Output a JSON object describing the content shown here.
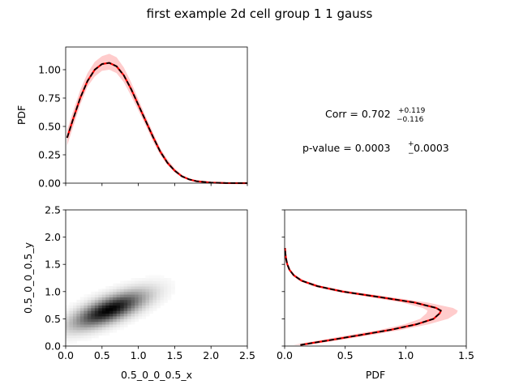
{
  "title": "first example 2d cell group 1 1 gauss",
  "stats": {
    "corr_prefix": "Corr = ",
    "corr_value": "0.702",
    "corr_plus": "+0.119",
    "corr_minus": "−0.116",
    "pvalue_prefix": "p-value = ",
    "pvalue_value": "0.0003",
    "pvalue_plus": "+",
    "pvalue_minus": "−",
    "pvalue_err": "0.0003"
  },
  "colors": {
    "band": "#ff0000",
    "band_opacity": 0.2,
    "truth_line": "#ff0000",
    "fit_line": "#000000"
  },
  "chart_data": [
    {
      "id": "marginal-x",
      "type": "line",
      "xlabel": "",
      "ylabel": "PDF",
      "xlim": [
        0,
        2.5
      ],
      "ylim": [
        0,
        1.2
      ],
      "xticks": [
        0,
        0.5,
        1.0,
        1.5,
        2.0,
        2.5
      ],
      "xtick_labels_visible": false,
      "yticks": [
        0.0,
        0.25,
        0.5,
        0.75,
        1.0
      ],
      "ytick_labels": [
        "0.00",
        "0.25",
        "0.50",
        "0.75",
        "1.00"
      ],
      "x": [
        0.02,
        0.1,
        0.2,
        0.3,
        0.4,
        0.5,
        0.6,
        0.7,
        0.8,
        0.9,
        1.0,
        1.1,
        1.2,
        1.3,
        1.4,
        1.5,
        1.6,
        1.7,
        1.8,
        2.0,
        2.2,
        2.5
      ],
      "y": [
        0.4,
        0.56,
        0.75,
        0.9,
        1.0,
        1.05,
        1.06,
        1.03,
        0.95,
        0.83,
        0.69,
        0.55,
        0.41,
        0.28,
        0.18,
        0.11,
        0.06,
        0.033,
        0.017,
        0.005,
        0.001,
        0.0
      ],
      "band_lower": [
        0.33,
        0.49,
        0.69,
        0.85,
        0.94,
        0.99,
        1.0,
        0.97,
        0.89,
        0.77,
        0.64,
        0.51,
        0.37,
        0.25,
        0.16,
        0.095,
        0.05,
        0.027,
        0.013,
        0.004,
        0.0,
        0.0
      ],
      "band_upper": [
        0.47,
        0.63,
        0.82,
        0.97,
        1.07,
        1.12,
        1.14,
        1.11,
        1.02,
        0.89,
        0.74,
        0.59,
        0.45,
        0.31,
        0.21,
        0.13,
        0.075,
        0.04,
        0.022,
        0.007,
        0.002,
        0.0
      ]
    },
    {
      "id": "joint-density",
      "type": "heatmap",
      "xlabel": "0.5_0_0_0.5_x",
      "ylabel": "0.5_0_0_0.5_y",
      "xlim": [
        0,
        2.5
      ],
      "ylim": [
        0,
        2.5
      ],
      "xticks": [
        0.0,
        0.5,
        1.0,
        1.5,
        2.0,
        2.5
      ],
      "xtick_labels": [
        "0.0",
        "0.5",
        "1.0",
        "1.5",
        "2.0",
        "2.5"
      ],
      "yticks": [
        0.0,
        0.5,
        1.0,
        1.5,
        2.0,
        2.5
      ],
      "ytick_labels": [
        "0.0",
        "0.5",
        "1.0",
        "1.5",
        "2.0",
        "2.5"
      ],
      "colormap": "Greys",
      "center": [
        0.6,
        0.67
      ],
      "sigma": [
        0.33,
        0.22
      ],
      "corr": 0.702
    },
    {
      "id": "marginal-y",
      "type": "line",
      "orientation": "horizontal",
      "xlabel": "PDF",
      "ylabel": "",
      "xlim": [
        0,
        1.5
      ],
      "ylim": [
        0,
        2.5
      ],
      "xticks": [
        0.0,
        0.5,
        1.0,
        1.5
      ],
      "xtick_labels": [
        "0.0",
        "0.5",
        "1.0",
        "1.5"
      ],
      "yticks": [
        0.0,
        0.5,
        1.0,
        1.5,
        2.0,
        2.5
      ],
      "ytick_labels_visible": false,
      "y": [
        0.02,
        0.1,
        0.2,
        0.3,
        0.4,
        0.5,
        0.6,
        0.65,
        0.7,
        0.8,
        0.9,
        1.0,
        1.1,
        1.2,
        1.3,
        1.4,
        1.5,
        1.6,
        1.7,
        1.8
      ],
      "pdf": [
        0.13,
        0.35,
        0.62,
        0.88,
        1.09,
        1.23,
        1.28,
        1.29,
        1.25,
        1.07,
        0.78,
        0.48,
        0.27,
        0.14,
        0.075,
        0.04,
        0.022,
        0.012,
        0.006,
        0.003
      ],
      "band_lower": [
        0.07,
        0.27,
        0.53,
        0.79,
        0.99,
        1.12,
        1.17,
        1.18,
        1.14,
        0.97,
        0.7,
        0.42,
        0.23,
        0.12,
        0.065,
        0.034,
        0.018,
        0.009,
        0.004,
        0.002
      ],
      "band_upper": [
        0.19,
        0.43,
        0.71,
        0.97,
        1.19,
        1.35,
        1.42,
        1.43,
        1.39,
        1.18,
        0.87,
        0.55,
        0.31,
        0.17,
        0.09,
        0.048,
        0.027,
        0.015,
        0.008,
        0.004
      ]
    }
  ]
}
